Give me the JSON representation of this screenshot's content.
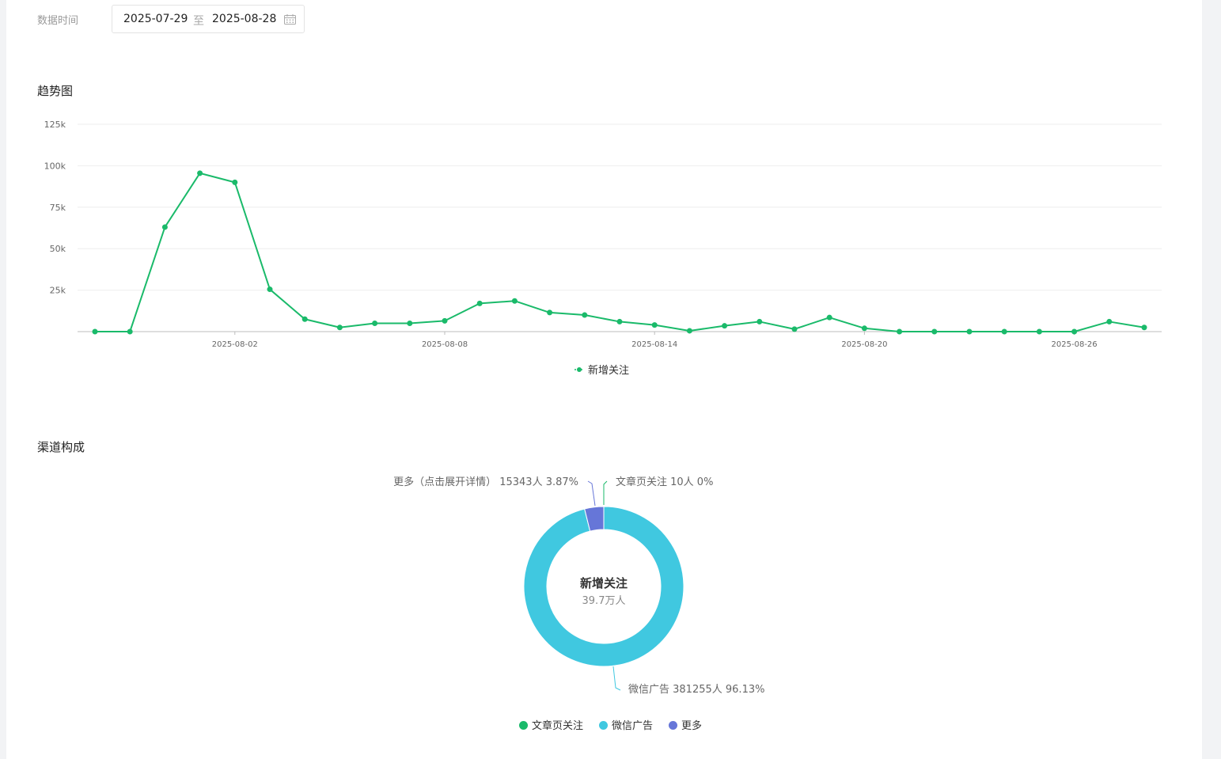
{
  "filter": {
    "label": "数据时间",
    "start_date": "2025-07-29",
    "separator": "至",
    "end_date": "2025-08-28"
  },
  "trend": {
    "title": "趋势图"
  },
  "channel": {
    "title": "渠道构成",
    "center_title": "新增关注",
    "center_value": "39.7万人"
  },
  "colors": {
    "line": "#1aba6a",
    "wechat_ad": "#40c8e0",
    "more": "#6676d8",
    "article": "#1aba6a"
  },
  "chart_data": [
    {
      "type": "line",
      "title": "趋势图",
      "x": [
        "2025-07-29",
        "2025-07-30",
        "2025-07-31",
        "2025-08-01",
        "2025-08-02",
        "2025-08-03",
        "2025-08-04",
        "2025-08-05",
        "2025-08-06",
        "2025-08-07",
        "2025-08-08",
        "2025-08-09",
        "2025-08-10",
        "2025-08-11",
        "2025-08-12",
        "2025-08-13",
        "2025-08-14",
        "2025-08-15",
        "2025-08-16",
        "2025-08-17",
        "2025-08-18",
        "2025-08-19",
        "2025-08-20",
        "2025-08-21",
        "2025-08-22",
        "2025-08-23",
        "2025-08-24",
        "2025-08-25",
        "2025-08-26",
        "2025-08-27",
        "2025-08-28"
      ],
      "x_tick_labels": [
        "2025-08-02",
        "2025-08-08",
        "2025-08-14",
        "2025-08-20",
        "2025-08-26"
      ],
      "series": [
        {
          "name": "新增关注",
          "values": [
            0,
            0,
            63000,
            95500,
            90000,
            25500,
            7500,
            2500,
            5000,
            5000,
            6500,
            17000,
            18500,
            11500,
            10000,
            6000,
            4000,
            500,
            3500,
            6000,
            1500,
            8500,
            2000,
            0,
            0,
            0,
            0,
            0,
            0,
            6000,
            2500
          ]
        }
      ],
      "ylim": [
        0,
        125000
      ],
      "y_ticks": [
        25000,
        50000,
        75000,
        100000,
        125000
      ],
      "y_tick_labels": [
        "25k",
        "50k",
        "75k",
        "100k",
        "125k"
      ],
      "grid": true,
      "legend_position": "bottom"
    },
    {
      "type": "pie",
      "title": "渠道构成",
      "slices": [
        {
          "name": "文章页关注",
          "value": 10,
          "percent": "0%",
          "label": "文章页关注 10人 0%"
        },
        {
          "name": "微信广告",
          "value": 381255,
          "percent": "96.13%",
          "label": "微信广告 381255人 96.13%"
        },
        {
          "name": "更多",
          "value": 15343,
          "percent": "3.87%",
          "label": "更多（点击展开详情） 15343人 3.87%"
        }
      ],
      "legend": [
        "文章页关注",
        "微信广告",
        "更多"
      ],
      "legend_position": "bottom"
    }
  ]
}
